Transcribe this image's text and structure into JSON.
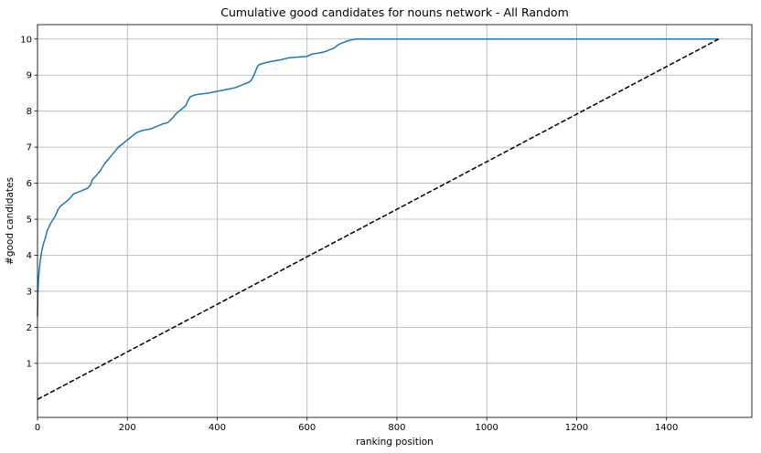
{
  "chart_data": {
    "type": "line",
    "title": "Cumulative good candidates for nouns network - All Random",
    "xlabel": "ranking position",
    "ylabel": "#good candidates",
    "xlim": [
      0,
      1590
    ],
    "ylim": [
      -0.5,
      10.4
    ],
    "xticks": [
      0,
      200,
      400,
      600,
      800,
      1000,
      1200,
      1400
    ],
    "yticks": [
      1,
      2,
      3,
      4,
      5,
      6,
      7,
      8,
      9,
      10
    ],
    "grid": true,
    "series": [
      {
        "style": "solid",
        "color": "#1f77b4",
        "x": [
          0,
          1,
          2,
          4,
          6,
          8,
          10,
          14,
          18,
          22,
          26,
          30,
          35,
          40,
          45,
          50,
          55,
          60,
          70,
          80,
          90,
          100,
          110,
          118,
          122,
          130,
          140,
          150,
          160,
          170,
          180,
          190,
          200,
          210,
          220,
          230,
          240,
          250,
          260,
          270,
          280,
          290,
          300,
          310,
          320,
          330,
          335,
          340,
          350,
          360,
          380,
          400,
          420,
          440,
          460,
          470,
          475,
          480,
          485,
          490,
          495,
          500,
          520,
          540,
          560,
          580,
          600,
          610,
          620,
          630,
          640,
          650,
          660,
          670,
          680,
          690,
          700,
          710,
          800,
          1000,
          1200,
          1400,
          1516
        ],
        "y": [
          2.3,
          3.0,
          3.3,
          3.6,
          3.85,
          4.0,
          4.15,
          4.35,
          4.5,
          4.7,
          4.8,
          4.9,
          5.0,
          5.1,
          5.25,
          5.35,
          5.4,
          5.45,
          5.55,
          5.7,
          5.75,
          5.8,
          5.85,
          5.95,
          6.1,
          6.2,
          6.35,
          6.55,
          6.7,
          6.85,
          7.0,
          7.1,
          7.2,
          7.3,
          7.4,
          7.45,
          7.48,
          7.5,
          7.55,
          7.6,
          7.65,
          7.68,
          7.8,
          7.95,
          8.05,
          8.15,
          8.3,
          8.4,
          8.45,
          8.47,
          8.5,
          8.55,
          8.6,
          8.65,
          8.75,
          8.8,
          8.85,
          8.95,
          9.1,
          9.25,
          9.3,
          9.32,
          9.38,
          9.42,
          9.48,
          9.5,
          9.52,
          9.58,
          9.6,
          9.62,
          9.65,
          9.7,
          9.75,
          9.85,
          9.9,
          9.95,
          9.98,
          10.0,
          10.0,
          10.0,
          10.0,
          10.0,
          10.0
        ]
      },
      {
        "style": "dashed",
        "color": "#000000",
        "x": [
          0,
          1516
        ],
        "y": [
          0.0,
          10.0
        ]
      }
    ]
  }
}
